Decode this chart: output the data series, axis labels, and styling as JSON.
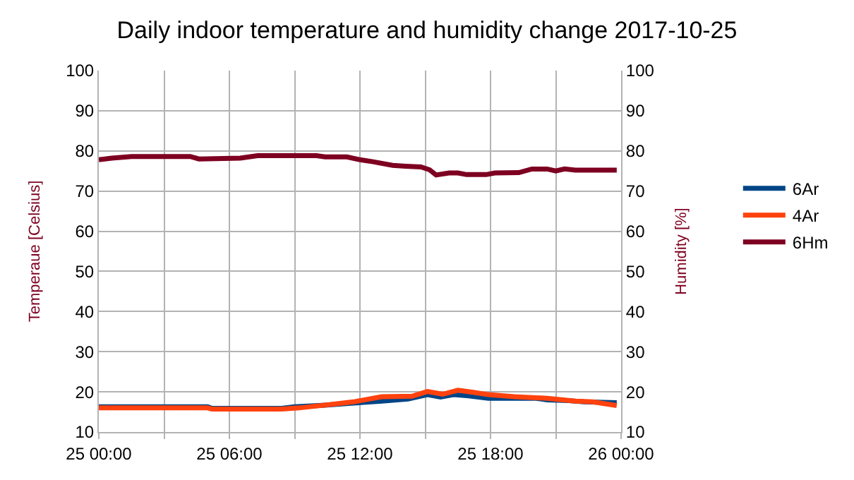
{
  "chart_data": {
    "type": "line",
    "title": "Daily indoor temperature and humidity change 2017-10-25",
    "ylabel": "Temperaue [Celsius]",
    "y2label": "Humidity [%]",
    "xlim": [
      "2017-10-25T00:00",
      "2017-10-26T00:00"
    ],
    "xticks": [
      {
        "value": "2017-10-25T00:00",
        "label": "25 00:00"
      },
      {
        "value": "2017-10-25T03:00",
        "label": null
      },
      {
        "value": "2017-10-25T06:00",
        "label": "25 06:00"
      },
      {
        "value": "2017-10-25T09:00",
        "label": null
      },
      {
        "value": "2017-10-25T12:00",
        "label": "25 12:00"
      },
      {
        "value": "2017-10-25T15:00",
        "label": null
      },
      {
        "value": "2017-10-25T18:00",
        "label": "25 18:00"
      },
      {
        "value": "2017-10-25T21:00",
        "label": null
      },
      {
        "value": "2017-10-26T00:00",
        "label": "26 00:00"
      }
    ],
    "ylim": [
      10,
      100
    ],
    "yticks": [
      10,
      20,
      30,
      40,
      50,
      60,
      70,
      80,
      90,
      100
    ],
    "y2lim": [
      10,
      100
    ],
    "y2ticks": [
      10,
      20,
      30,
      40,
      50,
      60,
      70,
      80,
      90,
      100
    ],
    "grid": true,
    "legend": "right",
    "marker": "none",
    "line_style": "solid",
    "series": [
      {
        "name": "6Ar",
        "color": "#004586",
        "x": [
          "2017-10-25T00:00",
          "2017-10-25T05:00",
          "2017-10-25T05:12",
          "2017-10-25T08:24",
          "2017-10-25T09:00",
          "2017-10-25T10:24",
          "2017-10-25T11:42",
          "2017-10-25T13:00",
          "2017-10-25T14:12",
          "2017-10-25T15:06",
          "2017-10-25T15:42",
          "2017-10-25T16:18",
          "2017-10-25T17:00",
          "2017-10-25T17:54",
          "2017-10-25T20:06",
          "2017-10-25T20:36",
          "2017-10-25T21:36",
          "2017-10-25T22:18",
          "2017-10-25T23:48"
        ],
        "values": [
          16.3,
          16.3,
          15.9,
          15.9,
          16.3,
          16.7,
          17.2,
          17.7,
          18.2,
          19.3,
          18.7,
          19.3,
          19,
          18.4,
          18.4,
          18,
          17.8,
          17.5,
          17.3
        ]
      },
      {
        "name": "4Ar",
        "color": "#ff420e",
        "x": [
          "2017-10-25T00:00",
          "2017-10-25T05:00",
          "2017-10-25T05:12",
          "2017-10-25T08:24",
          "2017-10-25T09:12",
          "2017-10-25T10:24",
          "2017-10-25T11:42",
          "2017-10-25T13:00",
          "2017-10-25T14:24",
          "2017-10-25T15:06",
          "2017-10-25T15:48",
          "2017-10-25T16:30",
          "2017-10-25T17:12",
          "2017-10-25T17:54",
          "2017-10-25T19:06",
          "2017-10-25T20:36",
          "2017-10-25T21:54",
          "2017-10-25T22:42",
          "2017-10-25T23:48"
        ],
        "values": [
          16,
          16,
          15.7,
          15.7,
          16,
          16.7,
          17.5,
          18.8,
          18.9,
          20.1,
          19.4,
          20.4,
          19.9,
          19.3,
          18.8,
          18.4,
          17.7,
          17.5,
          16.6
        ]
      },
      {
        "name": "6Hm",
        "color": "#7e0021",
        "axis": "y2",
        "x": [
          "2017-10-25T00:00",
          "2017-10-25T00:36",
          "2017-10-25T01:30",
          "2017-10-25T04:12",
          "2017-10-25T04:36",
          "2017-10-25T06:30",
          "2017-10-25T07:18",
          "2017-10-25T10:00",
          "2017-10-25T10:24",
          "2017-10-25T11:24",
          "2017-10-25T12:00",
          "2017-10-25T12:36",
          "2017-10-25T13:30",
          "2017-10-25T14:06",
          "2017-10-25T14:48",
          "2017-10-25T15:12",
          "2017-10-25T15:30",
          "2017-10-25T16:06",
          "2017-10-25T16:30",
          "2017-10-25T16:54",
          "2017-10-25T17:48",
          "2017-10-25T18:12",
          "2017-10-25T19:18",
          "2017-10-25T19:54",
          "2017-10-25T20:36",
          "2017-10-25T21:00",
          "2017-10-25T21:24",
          "2017-10-25T21:54",
          "2017-10-25T23:48"
        ],
        "values": [
          77.8,
          78.2,
          78.6,
          78.6,
          78,
          78.2,
          78.8,
          78.8,
          78.5,
          78.5,
          77.8,
          77.3,
          76.4,
          76.2,
          76,
          75.3,
          74,
          74.5,
          74.5,
          74.1,
          74.1,
          74.5,
          74.6,
          75.5,
          75.5,
          75,
          75.5,
          75.2,
          75.2
        ]
      }
    ]
  }
}
